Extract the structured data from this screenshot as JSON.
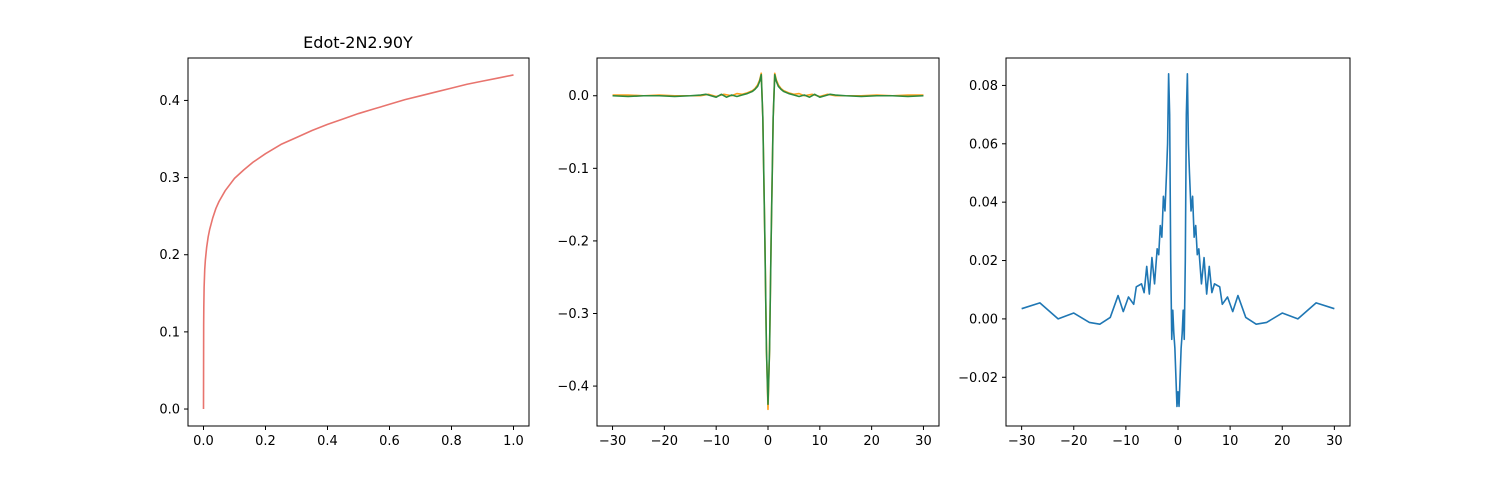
{
  "chart_data": [
    {
      "type": "line",
      "title": "Edot-2N2.90Y",
      "xlabel": "",
      "ylabel": "",
      "xlim": [
        -0.05,
        1.05
      ],
      "ylim": [
        -0.022,
        0.455
      ],
      "xticks": [
        0.0,
        0.2,
        0.4,
        0.6,
        0.8,
        1.0
      ],
      "xtick_labels": [
        "0.0",
        "0.2",
        "0.4",
        "0.6",
        "0.8",
        "1.0"
      ],
      "yticks": [
        0.0,
        0.1,
        0.2,
        0.3,
        0.4
      ],
      "ytick_labels": [
        "0.0",
        "0.1",
        "0.2",
        "0.3",
        "0.4"
      ],
      "grid": false,
      "series": [
        {
          "color": "#e8746e",
          "x": [
            0.0,
            0.0005,
            0.001,
            0.002,
            0.004,
            0.006,
            0.01,
            0.015,
            0.02,
            0.03,
            0.04,
            0.05,
            0.07,
            0.1,
            0.13,
            0.16,
            0.2,
            0.25,
            0.3,
            0.35,
            0.4,
            0.45,
            0.5,
            0.55,
            0.6,
            0.65,
            0.7,
            0.75,
            0.8,
            0.85,
            0.9,
            0.95,
            1.0
          ],
          "y": [
            0.0,
            0.108,
            0.132,
            0.158,
            0.181,
            0.193,
            0.209,
            0.223,
            0.233,
            0.248,
            0.26,
            0.269,
            0.283,
            0.299,
            0.31,
            0.32,
            0.331,
            0.343,
            0.352,
            0.361,
            0.369,
            0.376,
            0.383,
            0.389,
            0.395,
            0.401,
            0.406,
            0.411,
            0.416,
            0.421,
            0.425,
            0.429,
            0.433
          ]
        }
      ]
    },
    {
      "type": "line",
      "title": "",
      "xlabel": "",
      "ylabel": "",
      "xlim": [
        -33,
        33
      ],
      "ylim": [
        -0.455,
        0.052
      ],
      "xticks": [
        -30,
        -20,
        -10,
        0,
        10,
        20,
        30
      ],
      "xtick_labels": [
        "−30",
        "−20",
        "−10",
        "0",
        "10",
        "20",
        "30"
      ],
      "yticks": [
        0.0,
        -0.1,
        -0.2,
        -0.3,
        -0.4
      ],
      "ytick_labels": [
        "0.0",
        "−0.1",
        "−0.2",
        "−0.3",
        "−0.4"
      ],
      "grid": false,
      "series": [
        {
          "color": "#ff9f1c",
          "x": [
            -30,
            -27,
            -24,
            -21,
            -18,
            -15,
            -13,
            -11.5,
            -10,
            -8.5,
            -7,
            -6,
            -5,
            -4,
            -3,
            -2.5,
            -2,
            -1.6,
            -1.3,
            -1,
            -0.6,
            -0.3,
            0,
            0.3,
            0.6,
            1,
            1.3,
            1.6,
            2,
            2.5,
            3,
            4,
            5,
            6,
            7,
            8.5,
            10,
            11.5,
            13,
            15,
            18,
            21,
            24,
            27,
            30
          ],
          "y": [
            0.001,
            0.001,
            0.0,
            0.001,
            0.0,
            0.0,
            0.0,
            0.002,
            -0.001,
            0.002,
            0.0,
            0.003,
            0.002,
            0.004,
            0.007,
            0.01,
            0.015,
            0.022,
            0.031,
            -0.03,
            -0.2,
            -0.35,
            -0.432,
            -0.35,
            -0.2,
            -0.03,
            0.031,
            0.022,
            0.015,
            0.01,
            0.007,
            0.004,
            0.002,
            0.003,
            0.0,
            0.002,
            -0.001,
            0.002,
            0.0,
            0.0,
            0.0,
            0.001,
            0.0,
            0.001,
            0.001
          ]
        },
        {
          "color": "#2e8b3e",
          "x": [
            -30,
            -27,
            -24,
            -21,
            -18,
            -15,
            -13,
            -12,
            -11,
            -10,
            -9,
            -8,
            -7,
            -6,
            -5,
            -4,
            -3,
            -2.5,
            -2,
            -1.6,
            -1.3,
            -1,
            -0.6,
            -0.3,
            0,
            0.3,
            0.6,
            1,
            1.3,
            1.6,
            2,
            2.5,
            3,
            4,
            5,
            6,
            7,
            8,
            9,
            10,
            11,
            12,
            13,
            15,
            18,
            21,
            24,
            27,
            30
          ],
          "y": [
            0.0,
            -0.001,
            0.0,
            0.0,
            -0.001,
            0.0,
            0.001,
            0.002,
            0.0,
            -0.002,
            0.002,
            -0.002,
            0.001,
            -0.001,
            0.001,
            0.003,
            0.006,
            0.009,
            0.013,
            0.02,
            0.029,
            -0.03,
            -0.2,
            -0.35,
            -0.425,
            -0.35,
            -0.2,
            -0.03,
            0.029,
            0.02,
            0.013,
            0.009,
            0.006,
            0.003,
            0.001,
            -0.001,
            0.001,
            -0.002,
            0.002,
            -0.002,
            0.0,
            0.002,
            0.001,
            0.0,
            -0.001,
            0.0,
            0.0,
            -0.001,
            0.0
          ]
        }
      ]
    },
    {
      "type": "line",
      "title": "",
      "xlabel": "",
      "ylabel": "",
      "xlim": [
        -33,
        33
      ],
      "ylim": [
        -0.0367,
        0.0894
      ],
      "xticks": [
        -30,
        -20,
        -10,
        0,
        10,
        20,
        30
      ],
      "xtick_labels": [
        "−30",
        "−20",
        "−10",
        "0",
        "10",
        "20",
        "30"
      ],
      "yticks": [
        -0.02,
        0.0,
        0.02,
        0.04,
        0.06,
        0.08
      ],
      "ytick_labels": [
        "−0.02",
        "0.00",
        "0.02",
        "0.04",
        "0.06",
        "0.08"
      ],
      "grid": false,
      "series": [
        {
          "color": "#1f77b4",
          "x": [
            -30,
            -26.5,
            -23,
            -20,
            -17,
            -15,
            -13,
            -11.5,
            -10.5,
            -9.5,
            -8.5,
            -8,
            -7,
            -6.5,
            -6,
            -5.5,
            -5,
            -4.5,
            -4,
            -3.7,
            -3.4,
            -3.1,
            -2.8,
            -2.5,
            -2.2,
            -2,
            -1.8,
            -1.6,
            -1.4,
            -1.2,
            -1.0,
            -0.8,
            -0.6,
            -0.4,
            -0.2,
            0,
            0.2,
            0.4,
            0.6,
            0.8,
            1.0,
            1.2,
            1.4,
            1.6,
            1.8,
            2,
            2.2,
            2.5,
            2.8,
            3.1,
            3.4,
            3.7,
            4,
            4.5,
            5,
            5.5,
            6,
            6.5,
            7,
            8,
            8.5,
            9.5,
            10.5,
            11.5,
            13,
            15,
            17,
            20,
            23,
            26.5,
            30
          ],
          "y": [
            0.0035,
            0.0055,
            0.0,
            0.002,
            -0.0012,
            -0.0018,
            0.0005,
            0.008,
            0.0025,
            0.0075,
            0.005,
            0.011,
            0.012,
            0.009,
            0.018,
            0.0085,
            0.021,
            0.012,
            0.024,
            0.022,
            0.032,
            0.028,
            0.042,
            0.037,
            0.05,
            0.06,
            0.084,
            0.07,
            0.02,
            -0.007,
            0.003,
            -0.005,
            -0.01,
            -0.02,
            -0.03,
            -0.025,
            -0.03,
            -0.02,
            -0.01,
            -0.005,
            0.003,
            -0.007,
            0.02,
            0.07,
            0.084,
            0.06,
            0.05,
            0.037,
            0.042,
            0.028,
            0.032,
            0.022,
            0.024,
            0.012,
            0.021,
            0.0085,
            0.018,
            0.009,
            0.012,
            0.011,
            0.005,
            0.0075,
            0.0025,
            0.008,
            0.0005,
            -0.0018,
            -0.0012,
            0.002,
            0.0,
            0.0055,
            0.0035
          ]
        }
      ]
    }
  ]
}
